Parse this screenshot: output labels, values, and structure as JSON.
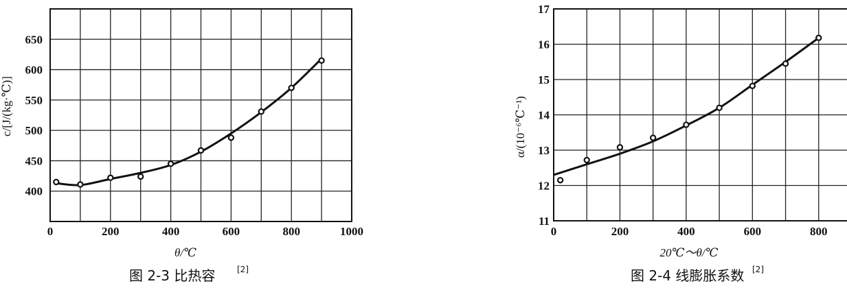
{
  "chart_data": [
    {
      "type": "line",
      "caption": "图 2-3 比热容",
      "caption_ref": "[2]",
      "xlabel": "θ/℃",
      "ylabel": "c/[J/(kg·℃)]",
      "xlim": [
        0,
        1000
      ],
      "ylim": [
        350,
        700
      ],
      "xticks": [
        "0",
        "200",
        "400",
        "600",
        "800",
        "1000"
      ],
      "yticks": [
        "400",
        "450",
        "500",
        "550",
        "600",
        "650"
      ],
      "grid": true,
      "points": {
        "x": [
          20,
          100,
          200,
          300,
          400,
          500,
          600,
          700,
          800,
          900
        ],
        "y": [
          415,
          411,
          422,
          424,
          445,
          467,
          488,
          531,
          570,
          615
        ]
      },
      "fit_curve": {
        "x": [
          20,
          100,
          200,
          300,
          400,
          500,
          600,
          700,
          800,
          900
        ],
        "y": [
          413,
          410,
          420,
          430,
          443,
          465,
          495,
          530,
          570,
          618
        ]
      }
    },
    {
      "type": "line",
      "caption": "图 2-4 线膨胀系数",
      "caption_ref": "[2]",
      "xlabel": "20℃～θ/℃",
      "ylabel": "α/(10⁻⁶℃⁻¹)",
      "xlim": [
        0,
        900
      ],
      "ylim": [
        11,
        17
      ],
      "xticks": [
        "0",
        "200",
        "400",
        "600",
        "800"
      ],
      "yticks": [
        "11",
        "12",
        "13",
        "14",
        "15",
        "16",
        "17"
      ],
      "grid": true,
      "points": {
        "x": [
          20,
          100,
          200,
          300,
          400,
          500,
          600,
          700,
          800
        ],
        "y": [
          12.15,
          12.72,
          13.08,
          13.35,
          13.72,
          14.2,
          14.82,
          15.45,
          16.18
        ]
      },
      "fit_curve": {
        "x": [
          0,
          100,
          200,
          300,
          400,
          500,
          600,
          700,
          800
        ],
        "y": [
          12.3,
          12.6,
          12.9,
          13.25,
          13.7,
          14.2,
          14.85,
          15.5,
          16.18
        ]
      }
    }
  ]
}
